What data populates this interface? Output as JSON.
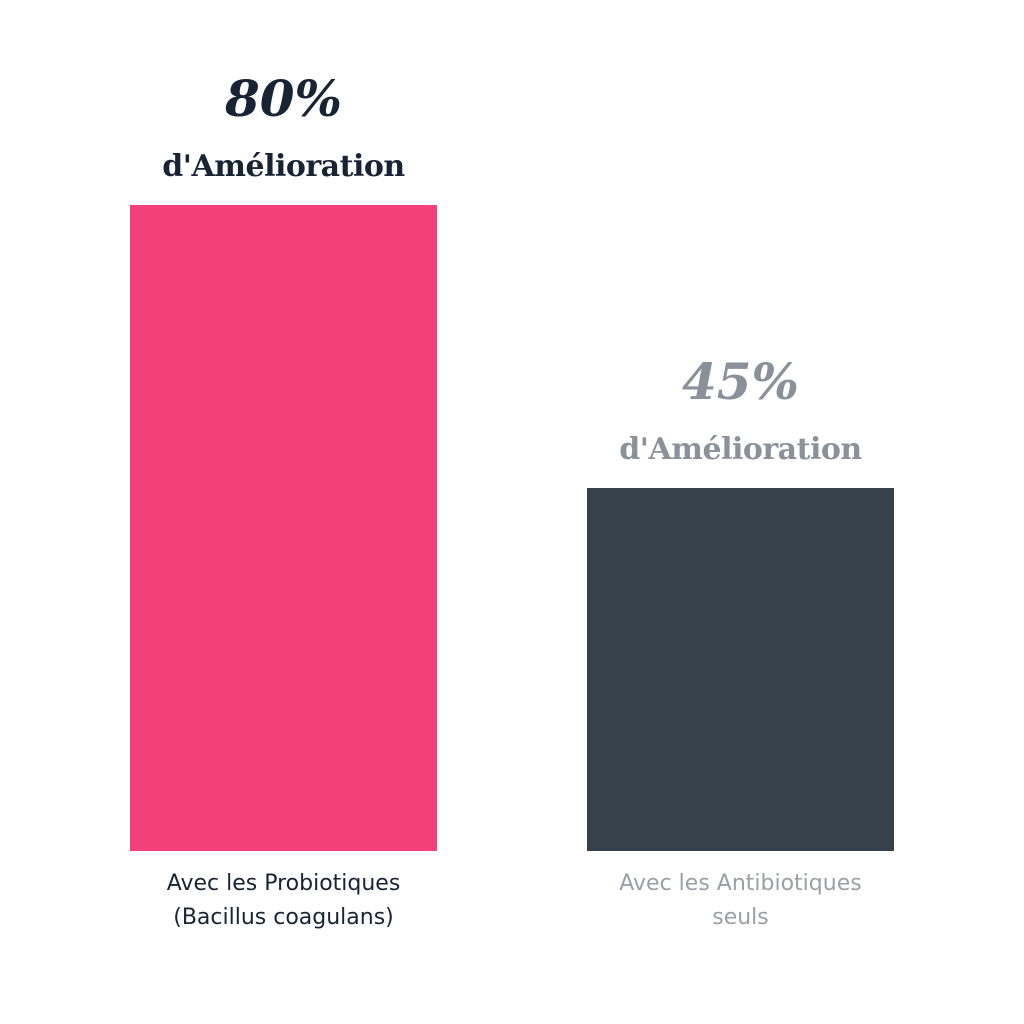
{
  "chart_data": {
    "type": "bar",
    "categories": [
      [
        "Avec les Probiotiques",
        "(Bacillus coagulans)"
      ],
      [
        "Avec les Antibiotiques",
        "seuls"
      ]
    ],
    "values": [
      80,
      45
    ],
    "data_labels": [
      "80%",
      "45%"
    ],
    "data_sublabels": [
      "d'Amélioration",
      "d'Amélioration"
    ],
    "ylim": [
      0,
      80
    ],
    "grid": false,
    "bar_colors": [
      "#F4407A",
      "#35414B"
    ],
    "label_colors": [
      "#182434",
      "#8A9199"
    ],
    "category_label_colors": [
      "#182434",
      "#9AA0A6"
    ]
  }
}
